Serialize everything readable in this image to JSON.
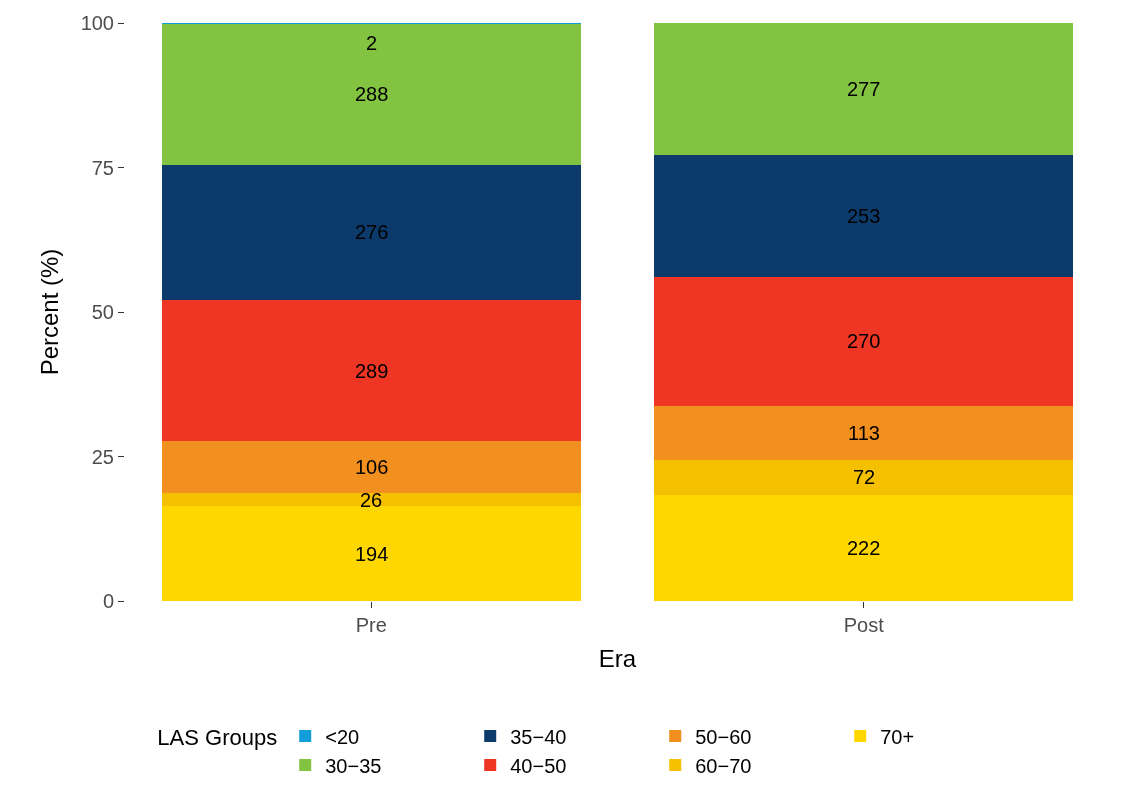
{
  "chart_data": {
    "type": "bar",
    "stacked": true,
    "xlabel": "Era",
    "ylabel": "Percent (%)",
    "legend_title": "LAS Groups",
    "legend": "bottom",
    "categories": [
      "Pre",
      "Post"
    ],
    "series": [
      {
        "name": "70+",
        "color": "#fed700",
        "values": [
          16.4,
          18.4
        ]
      },
      {
        "name": "60−70",
        "color": "#f5c000",
        "values": [
          2.2,
          6.0
        ]
      },
      {
        "name": "50−60",
        "color": "#f18f1f",
        "values": [
          9.0,
          9.3
        ]
      },
      {
        "name": "40−50",
        "color": "#ef3524",
        "values": [
          24.5,
          22.4
        ]
      },
      {
        "name": "35−40",
        "color": "#0c3a6b",
        "values": [
          23.4,
          21.0
        ]
      },
      {
        "name": "30−35",
        "color": "#82c341",
        "values": [
          24.4,
          22.9
        ]
      },
      {
        "name": "<20",
        "color": "#119dd8",
        "values": [
          0.1,
          0
        ]
      }
    ],
    "annotations": [
      "194",
      "26",
      "106",
      "289",
      "276",
      "288",
      "2",
      "222",
      "72",
      "113",
      "270",
      "253",
      "277"
    ],
    "ylim": [
      0,
      100
    ],
    "yticks": [
      0,
      25,
      50,
      75,
      100
    ]
  }
}
